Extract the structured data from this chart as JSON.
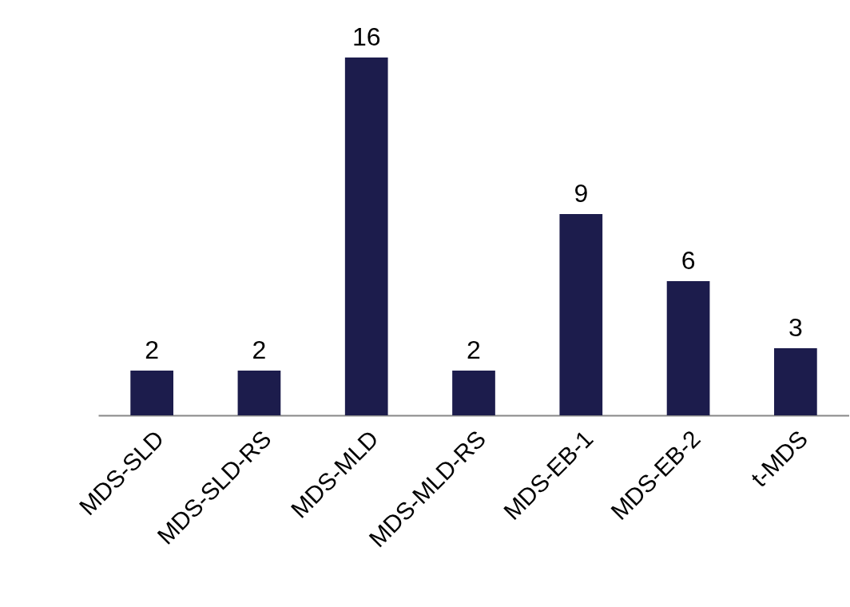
{
  "chart_data": {
    "type": "bar",
    "categories": [
      "MDS-SLD",
      "MDS-SLD-RS",
      "MDS-MLD",
      "MDS-MLD-RS",
      "MDS-EB-1",
      "MDS-EB-2",
      "t-MDS"
    ],
    "values": [
      2,
      2,
      16,
      2,
      9,
      6,
      3
    ],
    "color": "#1c1c4c",
    "data_labels": true,
    "grid": false
  }
}
